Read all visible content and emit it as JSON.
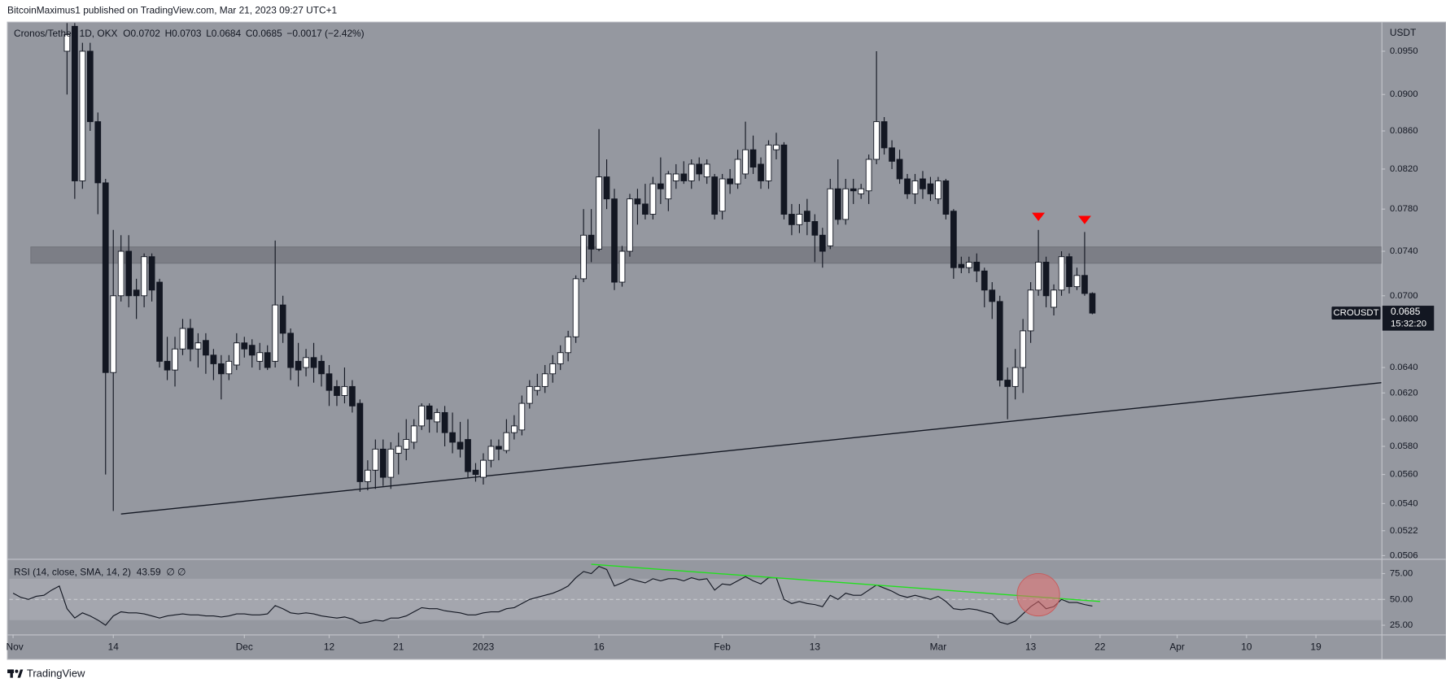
{
  "published": "BitcoinMaximus1 published on TradingView.com, Mar 21, 2023 09:27 UTC+1",
  "footer": "TradingView",
  "chart_data": [
    {
      "type": "candlestick",
      "title": "Cronos/Tether, 1D, OKX",
      "ohlc_labels": [
        "O0.0702",
        "H0.0703",
        "L0.0684",
        "C0.0685",
        "−0.0017 (−2.42%)"
      ],
      "axis_label": "USDT",
      "symbol_label": "CROUSDT",
      "countdown": "15:32:20",
      "log": true,
      "grid": false,
      "color_up": "#ffffff",
      "color_down": "#131722",
      "xlim": [
        -0.5,
        177.5
      ],
      "ylim": [
        0.0504,
        0.0984
      ],
      "yticks": [
        {
          "value": 0.095,
          "label": "0.0950"
        },
        {
          "value": 0.09,
          "label": "0.0900"
        },
        {
          "value": 0.086,
          "label": "0.0860"
        },
        {
          "value": 0.082,
          "label": "0.0820"
        },
        {
          "value": 0.078,
          "label": "0.0780"
        },
        {
          "value": 0.074,
          "label": "0.0740"
        },
        {
          "value": 0.07,
          "label": "0.0700"
        },
        {
          "value": 0.064,
          "label": "0.0640"
        },
        {
          "value": 0.062,
          "label": "0.0620"
        },
        {
          "value": 0.06,
          "label": "0.0600"
        },
        {
          "value": 0.058,
          "label": "0.0580"
        },
        {
          "value": 0.056,
          "label": "0.0560"
        },
        {
          "value": 0.054,
          "label": "0.0540"
        },
        {
          "value": 0.0522,
          "label": "0.0522"
        },
        {
          "value": 0.0506,
          "label": "0.0506"
        }
      ],
      "x": [
        7,
        8,
        9,
        10,
        11,
        12,
        13,
        14,
        15,
        16,
        17,
        18,
        19,
        20,
        21,
        22,
        23,
        24,
        25,
        26,
        27,
        28,
        29,
        30,
        31,
        32,
        33,
        34,
        35,
        36,
        37,
        38,
        39,
        40,
        41,
        42,
        43,
        44,
        45,
        46,
        47,
        48,
        49,
        50,
        51,
        52,
        53,
        54,
        55,
        56,
        57,
        58,
        59,
        60,
        61,
        62,
        63,
        64,
        65,
        66,
        67,
        68,
        69,
        70,
        71,
        72,
        73,
        74,
        75,
        76,
        77,
        78,
        79,
        80,
        81,
        82,
        83,
        84,
        85,
        86,
        87,
        88,
        89,
        90,
        91,
        92,
        93,
        94,
        95,
        96,
        97,
        98,
        99,
        100,
        101,
        102,
        103,
        104,
        105,
        106,
        107,
        108,
        109,
        110,
        111,
        112,
        113,
        114,
        115,
        116,
        117,
        118,
        119,
        120,
        121,
        122,
        123,
        124,
        125,
        126,
        127,
        128,
        129,
        130,
        131,
        132,
        133,
        134,
        135,
        136,
        137,
        138,
        139,
        140
      ],
      "open": [
        0.095,
        0.098,
        0.0808,
        0.095,
        0.087,
        0.0806,
        0.0636,
        0.07,
        0.074,
        0.0705,
        0.07,
        0.0735,
        0.0712,
        0.0645,
        0.0638,
        0.0655,
        0.0672,
        0.0655,
        0.0662,
        0.065,
        0.0643,
        0.0635,
        0.0642,
        0.066,
        0.0658,
        0.0645,
        0.0652,
        0.0645,
        0.0692,
        0.0668,
        0.0645,
        0.064,
        0.0648,
        0.0645,
        0.0635,
        0.0625,
        0.0618,
        0.0625,
        0.0612,
        0.0555,
        0.0563,
        0.0578,
        0.0558,
        0.0575,
        0.0578,
        0.0583,
        0.0595,
        0.061,
        0.0598,
        0.0605,
        0.059,
        0.0583,
        0.0585,
        0.0563,
        0.0558,
        0.057,
        0.058,
        0.0577,
        0.059,
        0.0592,
        0.0612,
        0.0622,
        0.0625,
        0.0635,
        0.0643,
        0.0652,
        0.0665,
        0.0715,
        0.0755,
        0.0742,
        0.0812,
        0.079,
        0.0712,
        0.074,
        0.079,
        0.0785,
        0.0775,
        0.0805,
        0.079,
        0.0808,
        0.0815,
        0.0808,
        0.0825,
        0.0812,
        0.0812,
        0.0778,
        0.081,
        0.0805,
        0.0815,
        0.084,
        0.0825,
        0.0808,
        0.084,
        0.0845,
        0.0775,
        0.0765,
        0.0778,
        0.0768,
        0.0755,
        0.0745,
        0.08,
        0.077,
        0.08,
        0.0795,
        0.0798,
        0.083,
        0.087,
        0.0842,
        0.083,
        0.081,
        0.0795,
        0.081,
        0.0805,
        0.079,
        0.0808,
        0.0778,
        0.0728,
        0.0725,
        0.073,
        0.0722,
        0.0705,
        0.0695,
        0.063,
        0.0625,
        0.064,
        0.067,
        0.0705,
        0.073,
        0.069,
        0.0705,
        0.0735,
        0.0708,
        0.0718,
        0.0702
      ],
      "high": [
        0.1,
        0.099,
        0.096,
        0.096,
        0.088,
        0.081,
        0.076,
        0.0755,
        0.0755,
        0.0715,
        0.0738,
        0.0738,
        0.0715,
        0.0665,
        0.0665,
        0.068,
        0.068,
        0.0668,
        0.0668,
        0.0655,
        0.065,
        0.065,
        0.0668,
        0.0665,
        0.0663,
        0.066,
        0.0658,
        0.075,
        0.07,
        0.0672,
        0.066,
        0.0655,
        0.066,
        0.065,
        0.0642,
        0.063,
        0.064,
        0.063,
        0.0615,
        0.057,
        0.0585,
        0.0585,
        0.0583,
        0.059,
        0.06,
        0.06,
        0.0612,
        0.0612,
        0.0608,
        0.061,
        0.0605,
        0.0598,
        0.06,
        0.0568,
        0.0575,
        0.0585,
        0.0585,
        0.06,
        0.0603,
        0.0618,
        0.063,
        0.0635,
        0.0642,
        0.065,
        0.0658,
        0.067,
        0.0718,
        0.078,
        0.078,
        0.0862,
        0.083,
        0.08,
        0.0745,
        0.0795,
        0.08,
        0.0805,
        0.0812,
        0.0832,
        0.0818,
        0.0825,
        0.0828,
        0.083,
        0.0832,
        0.083,
        0.0815,
        0.0815,
        0.082,
        0.084,
        0.087,
        0.0855,
        0.0832,
        0.085,
        0.0858,
        0.0848,
        0.0785,
        0.0785,
        0.079,
        0.0775,
        0.0762,
        0.081,
        0.083,
        0.081,
        0.081,
        0.0805,
        0.0835,
        0.095,
        0.0875,
        0.085,
        0.084,
        0.0815,
        0.0815,
        0.0818,
        0.0812,
        0.0812,
        0.081,
        0.078,
        0.0735,
        0.0735,
        0.0738,
        0.0725,
        0.0712,
        0.07,
        0.064,
        0.0655,
        0.068,
        0.0712,
        0.076,
        0.0735,
        0.071,
        0.074,
        0.0738,
        0.0725,
        0.0758,
        0.0703
      ],
      "low": [
        0.09,
        0.079,
        0.08,
        0.086,
        0.0775,
        0.056,
        0.0535,
        0.0695,
        0.069,
        0.068,
        0.069,
        0.0695,
        0.064,
        0.063,
        0.0625,
        0.065,
        0.0645,
        0.064,
        0.0635,
        0.063,
        0.0615,
        0.063,
        0.0638,
        0.0648,
        0.064,
        0.0638,
        0.0638,
        0.064,
        0.066,
        0.063,
        0.0625,
        0.0633,
        0.0628,
        0.0625,
        0.061,
        0.061,
        0.0612,
        0.0605,
        0.0548,
        0.0549,
        0.055,
        0.0552,
        0.055,
        0.056,
        0.057,
        0.0578,
        0.0592,
        0.059,
        0.059,
        0.058,
        0.0575,
        0.0572,
        0.0558,
        0.0555,
        0.0553,
        0.0565,
        0.057,
        0.0575,
        0.0585,
        0.0588,
        0.0608,
        0.0618,
        0.062,
        0.0628,
        0.0638,
        0.0645,
        0.066,
        0.0712,
        0.073,
        0.074,
        0.078,
        0.0705,
        0.0708,
        0.0735,
        0.0765,
        0.077,
        0.077,
        0.0785,
        0.0778,
        0.08,
        0.0805,
        0.08,
        0.0808,
        0.0805,
        0.077,
        0.077,
        0.0795,
        0.08,
        0.081,
        0.0815,
        0.08,
        0.08,
        0.083,
        0.077,
        0.0755,
        0.0757,
        0.0755,
        0.073,
        0.0725,
        0.0742,
        0.0765,
        0.0765,
        0.0785,
        0.079,
        0.0785,
        0.0825,
        0.0835,
        0.082,
        0.0805,
        0.079,
        0.0785,
        0.079,
        0.0788,
        0.0785,
        0.077,
        0.0715,
        0.072,
        0.072,
        0.0712,
        0.069,
        0.068,
        0.0625,
        0.06,
        0.0615,
        0.062,
        0.066,
        0.07,
        0.069,
        0.0683,
        0.07,
        0.0702,
        0.0705,
        0.07,
        0.0684
      ],
      "close": [
        0.097,
        0.0808,
        0.095,
        0.087,
        0.0806,
        0.0636,
        0.07,
        0.074,
        0.07,
        0.07,
        0.0735,
        0.0705,
        0.0645,
        0.0638,
        0.0655,
        0.0672,
        0.0655,
        0.066,
        0.065,
        0.0643,
        0.0635,
        0.0645,
        0.066,
        0.0655,
        0.065,
        0.0652,
        0.064,
        0.0692,
        0.0668,
        0.064,
        0.0638,
        0.0648,
        0.064,
        0.0635,
        0.0622,
        0.0618,
        0.0625,
        0.061,
        0.0555,
        0.0563,
        0.0578,
        0.0558,
        0.0578,
        0.058,
        0.0585,
        0.0595,
        0.061,
        0.06,
        0.0605,
        0.059,
        0.0583,
        0.0578,
        0.0562,
        0.056,
        0.057,
        0.058,
        0.0578,
        0.059,
        0.0595,
        0.0612,
        0.0625,
        0.0625,
        0.0635,
        0.0643,
        0.0652,
        0.0665,
        0.0715,
        0.0755,
        0.0742,
        0.0812,
        0.079,
        0.0712,
        0.074,
        0.079,
        0.0785,
        0.0775,
        0.0805,
        0.08,
        0.0815,
        0.0815,
        0.0808,
        0.0825,
        0.0815,
        0.0825,
        0.0775,
        0.081,
        0.0805,
        0.083,
        0.084,
        0.0822,
        0.0808,
        0.0845,
        0.0845,
        0.0775,
        0.0765,
        0.0775,
        0.0768,
        0.0755,
        0.074,
        0.08,
        0.077,
        0.08,
        0.0798,
        0.08,
        0.083,
        0.087,
        0.0842,
        0.0828,
        0.081,
        0.0795,
        0.0808,
        0.08,
        0.0795,
        0.0808,
        0.0775,
        0.0725,
        0.0725,
        0.073,
        0.0722,
        0.0705,
        0.0695,
        0.063,
        0.0625,
        0.064,
        0.067,
        0.0705,
        0.073,
        0.07,
        0.0705,
        0.0735,
        0.0708,
        0.0718,
        0.0702,
        0.0685
      ],
      "zone": {
        "range": [
          0.0729,
          0.0744
        ],
        "xrange": [
          2.3,
          177.5
        ],
        "color": "#5d5f66"
      },
      "trendline": {
        "x": [
          14,
          177.5
        ],
        "y": [
          0.0533,
          0.0628
        ],
        "color": "#131722"
      },
      "markers": {
        "x": [
          133,
          139
        ],
        "y": [
          0.0772,
          0.0769
        ],
        "color": "#ff0000"
      }
    },
    {
      "type": "line",
      "title": "RSI (14, close, SMA, 14, 2)",
      "extra_label": "∅ ∅",
      "color": "#131722",
      "band": [
        30,
        70
      ],
      "midline": 50,
      "xlim": [
        -0.5,
        177.5
      ],
      "ylim": [
        16.1,
        88.4
      ],
      "yticks": [
        {
          "value": 75,
          "label": "75.00"
        },
        {
          "value": 50,
          "label": "50.00"
        },
        {
          "value": 25,
          "label": "25.00"
        }
      ],
      "xticks": [
        {
          "value": 0,
          "label": "Nov"
        },
        {
          "value": 13,
          "label": "14"
        },
        {
          "value": 30,
          "label": "Dec"
        },
        {
          "value": 41,
          "label": "12"
        },
        {
          "value": 50,
          "label": "21"
        },
        {
          "value": 61,
          "label": "2023"
        },
        {
          "value": 76,
          "label": "16"
        },
        {
          "value": 92,
          "label": "Feb"
        },
        {
          "value": 104,
          "label": "13"
        },
        {
          "value": 120,
          "label": "Mar"
        },
        {
          "value": 132,
          "label": "13"
        },
        {
          "value": 141,
          "label": "22"
        },
        {
          "value": 151,
          "label": "Apr"
        },
        {
          "value": 160,
          "label": "10"
        },
        {
          "value": 169,
          "label": "19"
        }
      ],
      "x": [
        0,
        1,
        2,
        3,
        4,
        5,
        6,
        7,
        8,
        9,
        10,
        11,
        12,
        13,
        14,
        15,
        16,
        17,
        18,
        19,
        20,
        21,
        22,
        23,
        24,
        25,
        26,
        27,
        28,
        29,
        30,
        31,
        32,
        33,
        34,
        35,
        36,
        37,
        38,
        39,
        40,
        41,
        42,
        43,
        44,
        45,
        46,
        47,
        48,
        49,
        50,
        51,
        52,
        53,
        54,
        55,
        56,
        57,
        58,
        59,
        60,
        61,
        62,
        63,
        64,
        65,
        66,
        67,
        68,
        69,
        70,
        71,
        72,
        73,
        74,
        75,
        76,
        77,
        78,
        79,
        80,
        81,
        82,
        83,
        84,
        85,
        86,
        87,
        88,
        89,
        90,
        91,
        92,
        93,
        94,
        95,
        96,
        97,
        98,
        99,
        100,
        101,
        102,
        103,
        104,
        105,
        106,
        107,
        108,
        109,
        110,
        111,
        112,
        113,
        114,
        115,
        116,
        117,
        118,
        119,
        120,
        121,
        122,
        123,
        124,
        125,
        126,
        127,
        128,
        129,
        130,
        131,
        132,
        133,
        134,
        135,
        136,
        137,
        138,
        139,
        140
      ],
      "values": [
        56,
        52,
        50,
        53,
        54,
        59,
        63,
        41,
        32,
        37,
        34,
        30,
        25,
        34,
        38,
        37,
        37,
        36,
        34,
        32,
        34,
        35,
        36,
        35,
        35,
        34,
        34,
        33,
        34,
        36,
        36,
        35,
        35,
        36,
        44,
        41,
        37,
        36,
        37,
        36,
        34,
        33,
        32,
        33,
        31,
        27,
        28,
        30,
        29,
        32,
        32,
        34,
        38,
        42,
        41,
        41,
        39,
        38,
        37,
        35,
        35,
        37,
        38,
        38,
        41,
        42,
        46,
        50,
        52,
        54,
        56,
        59,
        63,
        71,
        77,
        75,
        82,
        79,
        63,
        66,
        70,
        68,
        66,
        70,
        68,
        70,
        70,
        68,
        71,
        69,
        70,
        59,
        65,
        64,
        68,
        72,
        68,
        65,
        71,
        71,
        50,
        46,
        48,
        46,
        45,
        43,
        54,
        50,
        56,
        54,
        54,
        59,
        64,
        61,
        58,
        54,
        52,
        54,
        52,
        50,
        53,
        48,
        41,
        40,
        41,
        40,
        38,
        36,
        28,
        26,
        29,
        36,
        43,
        48,
        41,
        43,
        50,
        47,
        47,
        45,
        43.59
      ],
      "trendline": {
        "x": [
          75,
          141
        ],
        "y": [
          84,
          48
        ],
        "color": "#22e01e"
      },
      "highlight": {
        "x": 133,
        "y": 54.5,
        "color": "#e06a6a"
      }
    }
  ]
}
